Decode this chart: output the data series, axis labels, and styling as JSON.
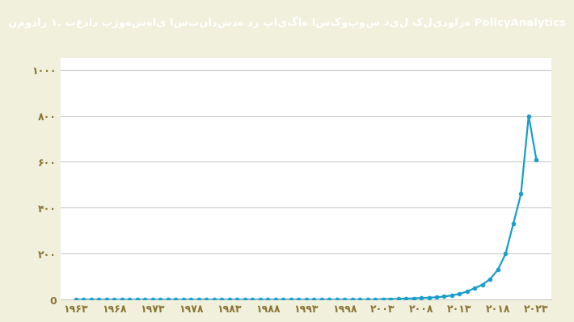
{
  "title": "نمودار ۱. تعداد پژوهش‌های استنادشده در پایگاه اسکوپوس ذیل کلیدواژه PolicyAnalytics",
  "title_bg": "#c8a84b",
  "title_color": "#ffffff",
  "line_color": "#1a9ec9",
  "marker_color": "#1a9ec9",
  "bg_color": "#f0f0dc",
  "plot_bg_color": "#ffffff",
  "grid_color": "#cccccc",
  "tick_color": "#8B7536",
  "years": [
    1963,
    1964,
    1965,
    1966,
    1967,
    1968,
    1969,
    1970,
    1971,
    1972,
    1973,
    1974,
    1975,
    1976,
    1977,
    1978,
    1979,
    1980,
    1981,
    1982,
    1983,
    1984,
    1985,
    1986,
    1987,
    1988,
    1989,
    1990,
    1991,
    1992,
    1993,
    1994,
    1995,
    1996,
    1997,
    1998,
    1999,
    2000,
    2001,
    2002,
    2003,
    2004,
    2005,
    2006,
    2007,
    2008,
    2009,
    2010,
    2011,
    2012,
    2013,
    2014,
    2015,
    2016,
    2017,
    2018,
    2019,
    2020,
    2021,
    2022,
    2023
  ],
  "values": [
    0,
    0,
    0,
    0,
    0,
    0,
    0,
    0,
    0,
    0,
    0,
    0,
    0,
    0,
    0,
    0,
    0,
    0,
    0,
    0,
    0,
    0,
    0,
    0,
    0,
    0,
    0,
    0,
    0,
    0,
    0,
    0,
    0,
    0,
    0,
    0,
    0,
    0,
    0,
    0,
    2,
    2,
    3,
    4,
    5,
    7,
    8,
    10,
    13,
    18,
    25,
    35,
    50,
    65,
    90,
    130,
    200,
    330,
    460,
    800,
    610
  ],
  "ytick_values": [
    0,
    200,
    400,
    600,
    800,
    1000
  ],
  "ytick_labels": [
    "0",
    "۲۰۰",
    "۴۰۰",
    "۶۰۰",
    "۸۰۰",
    "۱۰۰۰"
  ],
  "xtick_values": [
    1963,
    1968,
    1973,
    1978,
    1983,
    1988,
    1993,
    1998,
    2003,
    2008,
    2013,
    2018,
    2023
  ],
  "xtick_labels": [
    "۱۹۶۳",
    "۱۹۶۸",
    "۱۹۷۳",
    "۱۹۷۸",
    "۱۹۸۳",
    "۱۹۸۸",
    "۱۹۹۳",
    "۱۹۹۸",
    "۲۰۰۳",
    "۲۰۰۸",
    "۲۰۱۳",
    "۲۰۱۸",
    "۲۰۲۳"
  ],
  "xlim": [
    1961,
    2025
  ],
  "ylim": [
    0,
    1050
  ]
}
